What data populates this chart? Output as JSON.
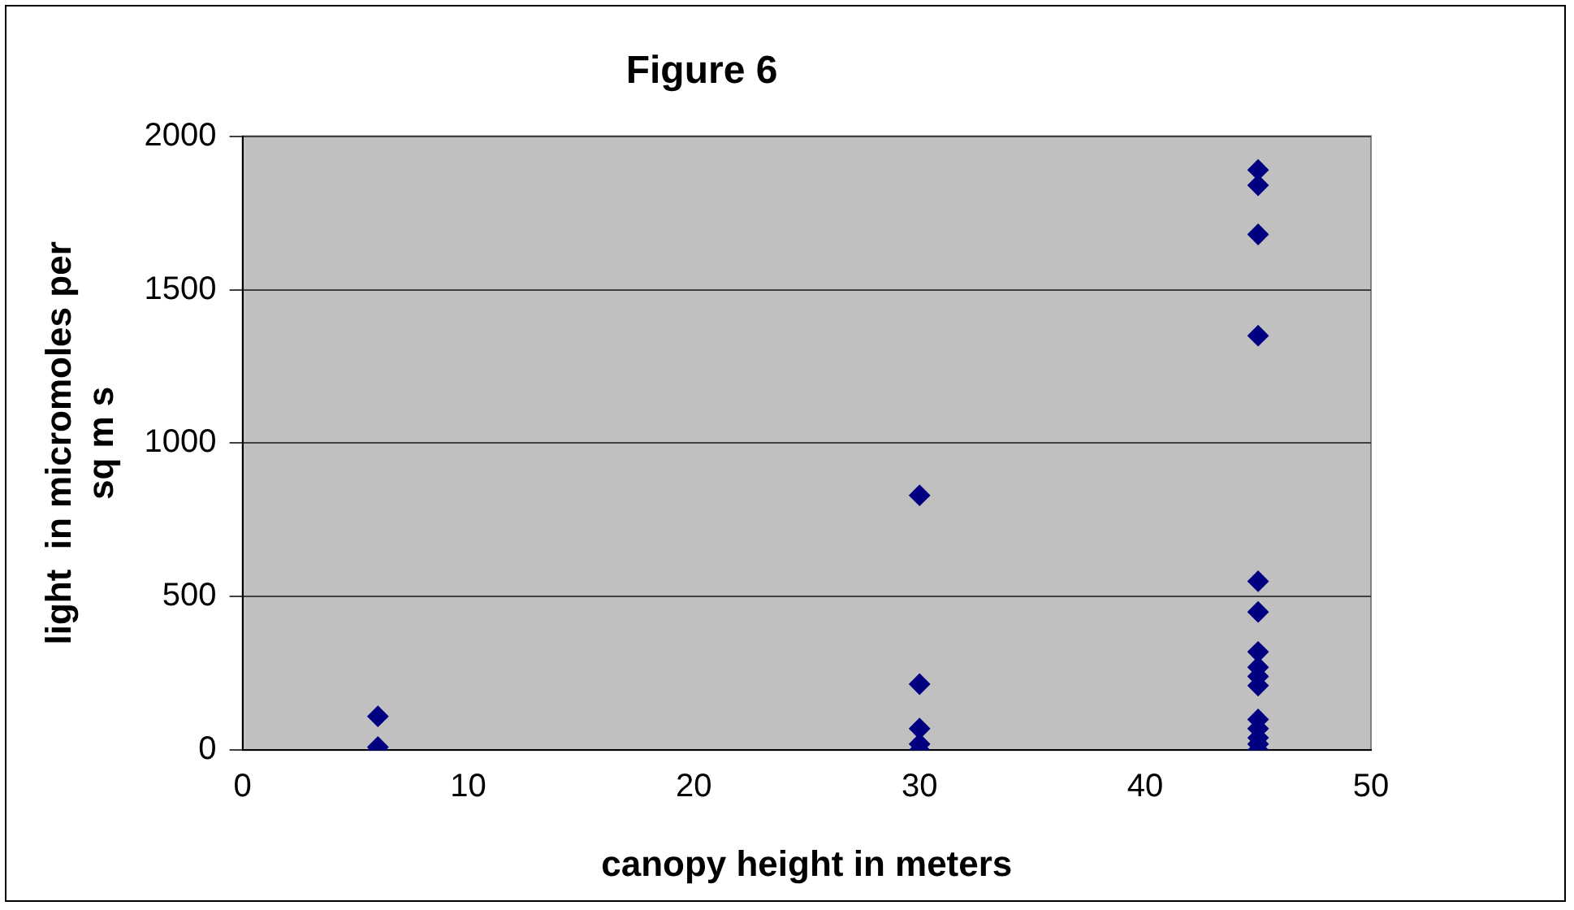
{
  "chart_data": {
    "type": "scatter",
    "title": "Figure 6",
    "xlabel": "canopy height in meters",
    "ylabel": "light  in micromoles per sq m s",
    "x": [
      6,
      6,
      6,
      30,
      30,
      30,
      30,
      30,
      45,
      45,
      45,
      45,
      45,
      45,
      45,
      45,
      45,
      45,
      45,
      45,
      45,
      45,
      45
    ],
    "values": [
      110,
      10,
      0,
      830,
      215,
      70,
      20,
      0,
      1890,
      1840,
      1680,
      1350,
      550,
      450,
      320,
      270,
      240,
      210,
      100,
      70,
      40,
      20,
      0
    ],
    "color": "#000080",
    "marker": "diamond",
    "xlim": [
      0,
      50
    ],
    "xticks": [
      0,
      10,
      20,
      30,
      40,
      50
    ],
    "ylim": [
      0,
      2000
    ],
    "yticks": [
      0,
      500,
      1000,
      1500,
      2000
    ],
    "grid": "y",
    "legend": false
  }
}
